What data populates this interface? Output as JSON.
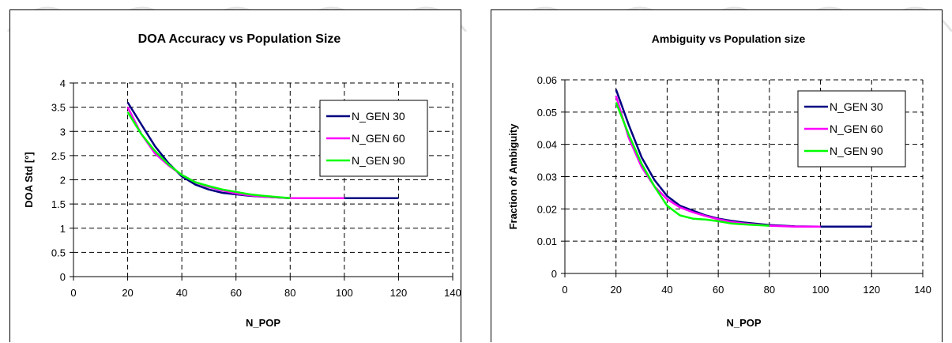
{
  "chart_data": [
    {
      "type": "line",
      "title": "DOA Accuracy vs Population Size",
      "xlabel": "N_POP",
      "ylabel": "DOA Std [°]",
      "xlim": [
        0,
        140
      ],
      "ylim": [
        0,
        4
      ],
      "x_ticks": [
        "0",
        "20",
        "40",
        "60",
        "80",
        "100",
        "120",
        "140"
      ],
      "y_ticks": [
        "0",
        "0.5",
        "1",
        "1.5",
        "2",
        "2.5",
        "3",
        "3.5",
        "4"
      ],
      "x_tick_values": [
        0,
        20,
        40,
        60,
        80,
        100,
        120,
        140
      ],
      "y_tick_values": [
        0,
        0.5,
        1,
        1.5,
        2,
        2.5,
        3,
        3.5,
        4
      ],
      "grid": true,
      "legend_position": "right",
      "series": [
        {
          "name": "N_GEN 30",
          "color": "#000080",
          "x": [
            20,
            25,
            30,
            35,
            40,
            45,
            50,
            55,
            60,
            65,
            70,
            80,
            90,
            100,
            110,
            120
          ],
          "y": [
            3.6,
            3.15,
            2.7,
            2.35,
            2.07,
            1.9,
            1.8,
            1.73,
            1.7,
            1.67,
            1.65,
            1.62,
            1.62,
            1.62,
            1.62,
            1.62
          ]
        },
        {
          "name": "N_GEN 60",
          "color": "#ff00ff",
          "x": [
            20,
            25,
            30,
            35,
            40,
            45,
            50,
            55,
            60,
            65,
            70,
            80,
            90,
            100
          ],
          "y": [
            3.5,
            2.95,
            2.55,
            2.3,
            2.1,
            1.95,
            1.85,
            1.78,
            1.72,
            1.68,
            1.65,
            1.62,
            1.62,
            1.62
          ]
        },
        {
          "name": "N_GEN 90",
          "color": "#00ff00",
          "x": [
            20,
            25,
            30,
            35,
            40,
            45,
            50,
            55,
            60,
            65,
            70,
            80
          ],
          "y": [
            3.4,
            2.95,
            2.6,
            2.32,
            2.1,
            1.95,
            1.87,
            1.8,
            1.75,
            1.7,
            1.67,
            1.62
          ]
        }
      ]
    },
    {
      "type": "line",
      "title": "Ambiguity vs Population size",
      "xlabel": "N_POP",
      "ylabel": "Fraction of Ambiguity",
      "xlim": [
        0,
        140
      ],
      "ylim": [
        0,
        0.06
      ],
      "x_ticks": [
        "0",
        "20",
        "40",
        "60",
        "80",
        "100",
        "120",
        "140"
      ],
      "y_ticks": [
        "0",
        "0.01",
        "0.02",
        "0.03",
        "0.04",
        "0.05",
        "0.06"
      ],
      "x_tick_values": [
        0,
        20,
        40,
        60,
        80,
        100,
        120,
        140
      ],
      "y_tick_values": [
        0,
        0.01,
        0.02,
        0.03,
        0.04,
        0.05,
        0.06
      ],
      "grid": true,
      "legend_position": "top-right",
      "series": [
        {
          "name": "N_GEN 30",
          "color": "#000080",
          "x": [
            20,
            25,
            30,
            35,
            40,
            45,
            50,
            55,
            60,
            65,
            70,
            80,
            90,
            100,
            110,
            120
          ],
          "y": [
            0.057,
            0.046,
            0.036,
            0.029,
            0.024,
            0.021,
            0.0195,
            0.018,
            0.017,
            0.0163,
            0.0158,
            0.015,
            0.0146,
            0.0145,
            0.0145,
            0.0145
          ]
        },
        {
          "name": "N_GEN 60",
          "color": "#ff00ff",
          "x": [
            20,
            25,
            30,
            35,
            40,
            45,
            50,
            55,
            60,
            65,
            70,
            80,
            90,
            100
          ],
          "y": [
            0.055,
            0.042,
            0.033,
            0.027,
            0.023,
            0.0205,
            0.019,
            0.0178,
            0.0168,
            0.016,
            0.0155,
            0.0148,
            0.0145,
            0.0145
          ]
        },
        {
          "name": "N_GEN 90",
          "color": "#00ff00",
          "x": [
            20,
            25,
            30,
            35,
            40,
            45,
            50,
            55,
            60,
            65,
            70,
            80
          ],
          "y": [
            0.053,
            0.043,
            0.034,
            0.027,
            0.021,
            0.018,
            0.017,
            0.0167,
            0.0162,
            0.0155,
            0.0152,
            0.0148
          ]
        }
      ]
    }
  ]
}
